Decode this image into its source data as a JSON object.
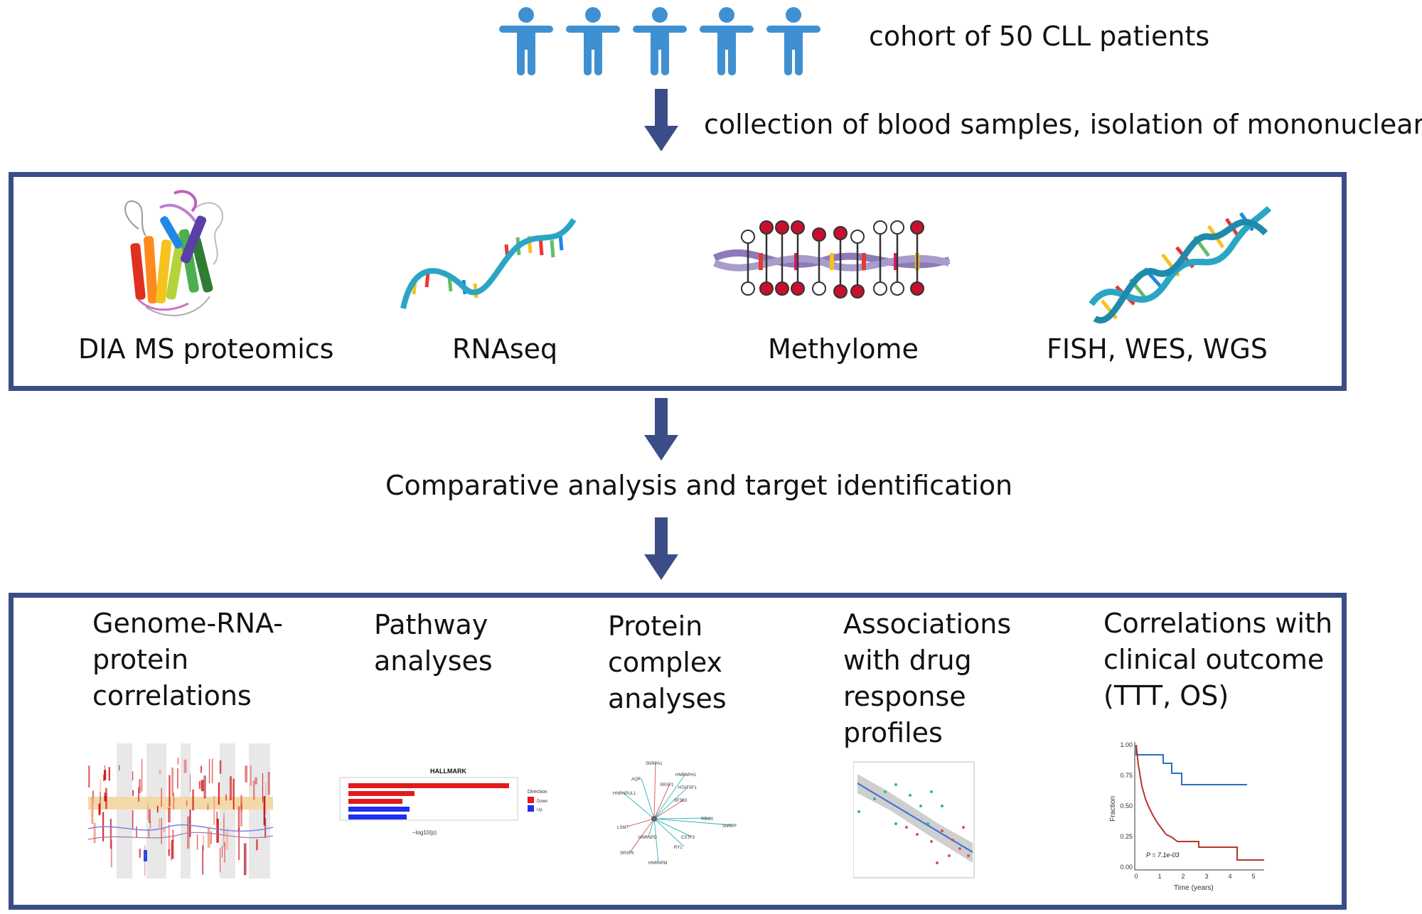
{
  "header": {
    "cohort_label": "cohort of 50 CLL patients",
    "collection_label": "collection of blood samples, isolation of mononuclear cells"
  },
  "omics": [
    {
      "label": "DIA MS proteomics",
      "icon": "protein-structure-icon"
    },
    {
      "label": "RNAseq",
      "icon": "rna-strand-icon"
    },
    {
      "label": "Methylome",
      "icon": "methylated-dna-icon"
    },
    {
      "label": "FISH, WES, WGS",
      "icon": "dna-double-helix-icon"
    }
  ],
  "middle_label": "Comparative analysis and target identification",
  "analyses": [
    {
      "label": "Genome-RNA-\nprotein\ncorrelations"
    },
    {
      "label": "Pathway\nanalyses"
    },
    {
      "label": "Protein\ncomplex\nanalyses"
    },
    {
      "label": "Associations\nwith drug\nresponse\nprofiles"
    },
    {
      "label": "Correlations with\nclinical outcome\n(TTT, OS)"
    }
  ],
  "pathway_thumb": {
    "title": "HALLMARK",
    "legend_title": "Direction",
    "legend_down": "Down",
    "legend_up": "Up",
    "xlabel": "−log10(p)"
  },
  "network_thumb": {
    "nodes": [
      "SNRPA1",
      "AQR",
      "HNRNPH1",
      "SRSF1",
      "HTATSF1",
      "HNRNPUL1",
      "SF3B3",
      "RBMX",
      "SNRPF",
      "LSM7",
      "HNRNPD",
      "CSTF3",
      "SRSF6",
      "RY1",
      "HNRNPM"
    ]
  },
  "km_thumb": {
    "ylabel": "Fraction",
    "xlabel": "Time (years)",
    "pvalue": "P = 7.1e-03",
    "yticks": [
      "1.00",
      "0.75",
      "0.50",
      "0.25",
      "0.00"
    ],
    "xticks": [
      "0",
      "1",
      "2",
      "3",
      "4",
      "5"
    ]
  },
  "colors": {
    "accent": "#3b4d86",
    "person": "#3f90d2"
  }
}
